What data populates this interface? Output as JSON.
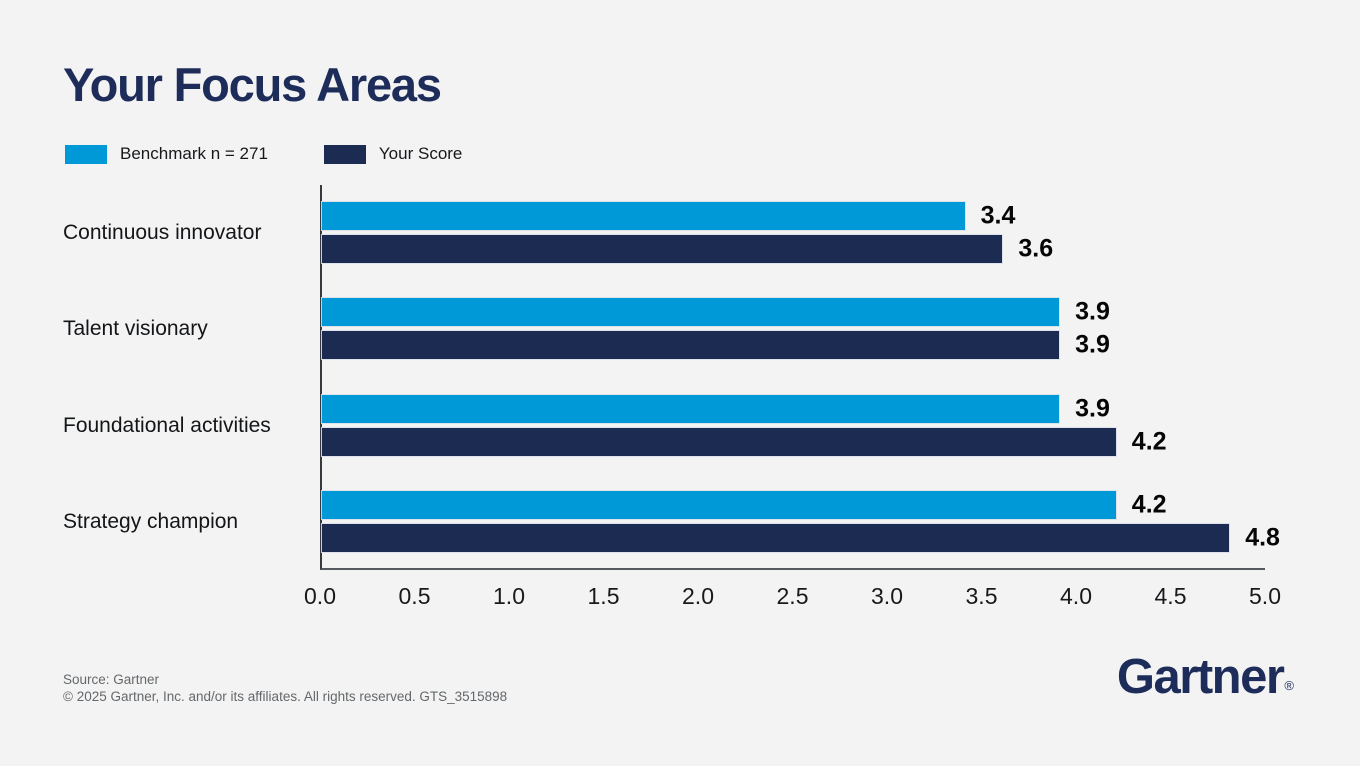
{
  "title": "Your Focus Areas",
  "colors": {
    "background": "#f3f3f4",
    "benchmark_blue": "#0099d8",
    "score_navy": "#1c2b52",
    "brand_navy": "#1e2c5a"
  },
  "legend": [
    {
      "label": "Benchmark n = 271",
      "color": "#0099d8"
    },
    {
      "label": "Your Score",
      "color": "#1c2b52"
    }
  ],
  "chart_data": {
    "type": "bar",
    "orientation": "horizontal",
    "title": "Your Focus Areas",
    "categories": [
      "Continuous innovator",
      "Talent visionary",
      "Foundational activities",
      "Strategy champion"
    ],
    "series": [
      {
        "name": "Benchmark n = 271",
        "color": "#0099d8",
        "values": [
          3.4,
          3.9,
          3.9,
          4.2
        ]
      },
      {
        "name": "Your Score",
        "color": "#1c2b52",
        "values": [
          3.6,
          3.9,
          4.2,
          4.8
        ]
      }
    ],
    "xlim": [
      0,
      5
    ],
    "xticks": [
      "0.0",
      "0.5",
      "1.0",
      "1.5",
      "2.0",
      "2.5",
      "3.0",
      "3.5",
      "4.0",
      "4.5",
      "5.0"
    ],
    "value_labels": true,
    "grid": false,
    "legend_position": "top-left"
  },
  "footer": {
    "source": "Source: Gartner",
    "copyright": "© 2025 Gartner, Inc. and/or its affiliates. All rights reserved. GTS_3515898"
  },
  "logo": {
    "text": "Gartner",
    "registered": "®"
  }
}
